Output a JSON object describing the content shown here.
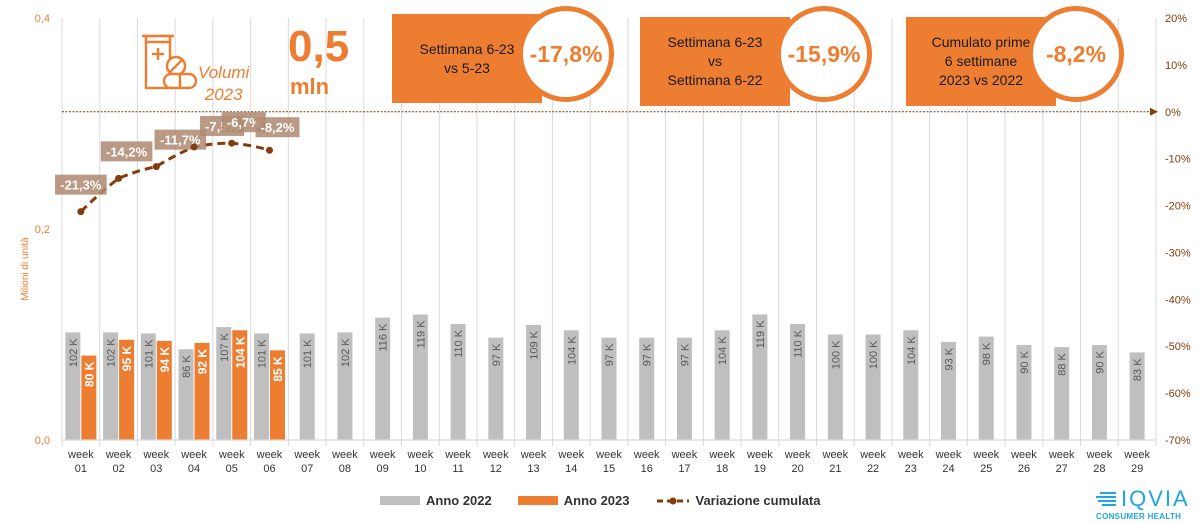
{
  "header": {
    "volume_value": "0,5",
    "volume_unit": "mln",
    "volume_label_line1": "Volumi",
    "volume_label_line2": "2023",
    "icon": "pill-bottle-icon"
  },
  "kpis": [
    {
      "label_lines": [
        "Settimana 6-23",
        "vs 5-23"
      ],
      "value": "-17,8%"
    },
    {
      "label_lines": [
        "Settimana 6-23",
        "vs",
        "Settimana 6-22"
      ],
      "value": "-15,9%"
    },
    {
      "label_lines": [
        "Cumulato prime",
        "6 settimane",
        "2023 vs 2022"
      ],
      "value": "-8,2%"
    }
  ],
  "legend": {
    "items": [
      {
        "label": "Anno 2022",
        "color": "#BFBFBF"
      },
      {
        "label": "Anno 2023",
        "color": "#ED7D31"
      },
      {
        "label": "Variazione cumulata",
        "color": "#843C0C"
      }
    ]
  },
  "logo": {
    "name": "IQVIA",
    "subtitle": "CONSUMER HEALTH"
  },
  "chart_data": {
    "type": "bar",
    "title": "",
    "ylabel": "Milioni di unità",
    "ylim": [
      0,
      0.4
    ],
    "y_ticks": [
      "0,0",
      "0,2",
      "0,4"
    ],
    "y2lim": [
      -70,
      20
    ],
    "y2_ticks": [
      "20%",
      "10%",
      "0%",
      "-10%",
      "-20%",
      "-30%",
      "-40%",
      "-50%",
      "-60%",
      "-70%"
    ],
    "categories": [
      "week 01",
      "week 02",
      "week 03",
      "week 04",
      "week 05",
      "week 06",
      "week 07",
      "week 08",
      "week 09",
      "week 10",
      "week 11",
      "week 12",
      "week 13",
      "week 14",
      "week 15",
      "week 16",
      "week 17",
      "week 18",
      "week 19",
      "week 20",
      "week 21",
      "week 22",
      "week 23",
      "week 24",
      "week 25",
      "week 26",
      "week 27",
      "week 28",
      "week 29"
    ],
    "series": [
      {
        "name": "Anno 2022",
        "type": "bar",
        "color": "#BFBFBF",
        "values": [
          102,
          102,
          101,
          86,
          107,
          101,
          101,
          102,
          116,
          119,
          110,
          97,
          109,
          104,
          97,
          97,
          97,
          104,
          119,
          110,
          100,
          100,
          104,
          93,
          98,
          90,
          88,
          90,
          83
        ],
        "unit": "K"
      },
      {
        "name": "Anno 2023",
        "type": "bar",
        "color": "#ED7D31",
        "values": [
          80,
          95,
          94,
          92,
          104,
          85
        ],
        "unit": "K"
      },
      {
        "name": "Variazione cumulata",
        "type": "line",
        "axis": "right",
        "color": "#843C0C",
        "values": [
          -21.3,
          -14.2,
          -11.7,
          -7.5,
          -6.7,
          -8.2
        ],
        "labels": [
          "-21,3%",
          "-14,2%",
          "-11,7%",
          "-7,5%",
          "-6,7%",
          "-8,2%"
        ]
      }
    ],
    "grid": true,
    "legend_position": "bottom"
  }
}
